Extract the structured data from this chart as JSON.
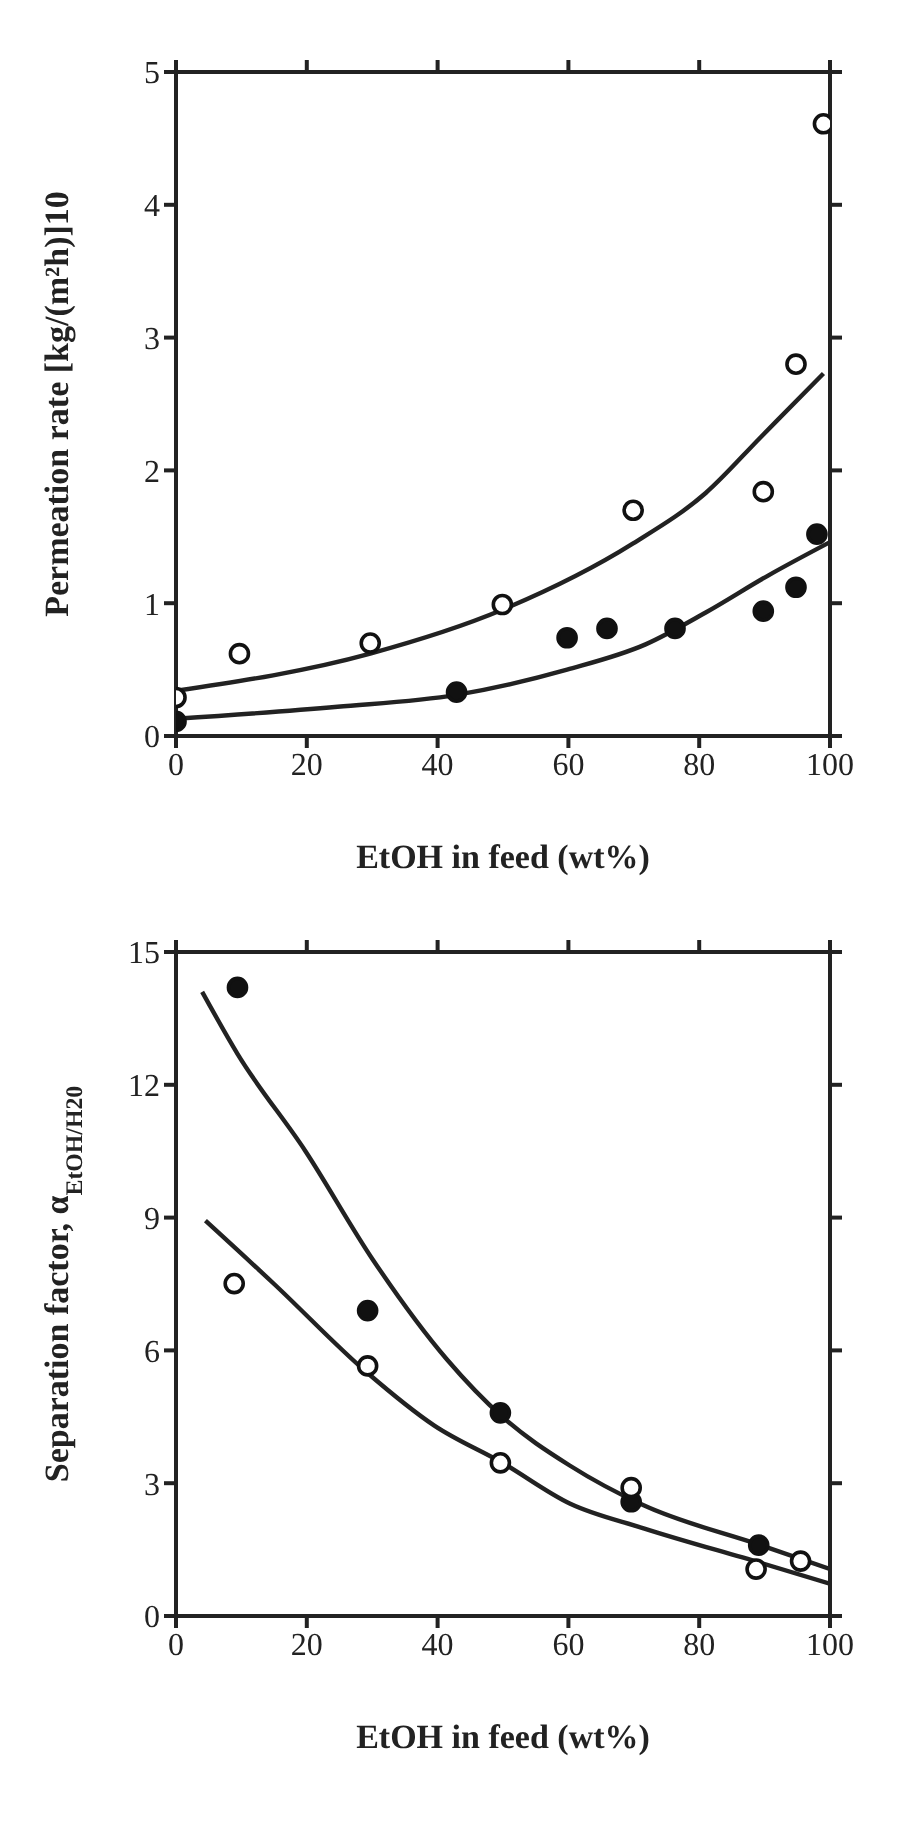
{
  "chart_data": [
    {
      "type": "scatter",
      "xlabel": "EtOH in feed (wt%)",
      "ylabel": "Permeation rate [kg/(m²h)]10",
      "xlim": [
        0,
        100
      ],
      "xticks": [
        0,
        20,
        40,
        60,
        80,
        100
      ],
      "ylim": [
        0,
        5
      ],
      "yticks": [
        0,
        1,
        2,
        3,
        4,
        5
      ],
      "series": [
        {
          "marker": "circle",
          "color": "#ffffff",
          "x": [
            0,
            9.7,
            29.7,
            49.9,
            69.9,
            89.8,
            94.8,
            99
          ],
          "values": [
            0.29,
            0.62,
            0.7,
            0.99,
            1.7,
            1.84,
            2.8,
            4.61
          ]
        },
        {
          "marker": "circle",
          "color": "#111111",
          "x": [
            0,
            42.9,
            59.8,
            65.9,
            76.3,
            89.8,
            94.8,
            98
          ],
          "values": [
            0.11,
            0.33,
            0.74,
            0.81,
            0.81,
            0.94,
            1.12,
            1.52
          ]
        },
        {
          "type": "line",
          "marker": "none",
          "color": "#222222",
          "x": [
            0,
            29.7,
            49.9,
            69.9,
            81,
            89.4,
            99
          ],
          "values": [
            0.34,
            0.62,
            0.95,
            1.45,
            1.83,
            2.25,
            2.73
          ]
        },
        {
          "type": "line",
          "marker": "none",
          "color": "#222222",
          "x": [
            0,
            24.7,
            42.9,
            59.8,
            71.8,
            81,
            90.6,
            100
          ],
          "values": [
            0.13,
            0.22,
            0.31,
            0.5,
            0.69,
            0.93,
            1.21,
            1.46
          ]
        }
      ]
    },
    {
      "type": "scatter",
      "xlabel": "EtOH in feed (wt%)",
      "ylabel": "Separation factor, α$_{EtOH/H20}$",
      "xlim": [
        0,
        100
      ],
      "xticks": [
        0,
        20,
        40,
        60,
        80,
        100
      ],
      "ylim": [
        0,
        15
      ],
      "yticks": [
        0,
        3,
        6,
        9,
        12,
        15
      ],
      "series": [
        {
          "marker": "circle",
          "color": "#111111",
          "x": [
            9.4,
            29.3,
            49.6,
            69.6,
            89.1
          ],
          "values": [
            14.2,
            6.9,
            4.59,
            2.58,
            1.6
          ]
        },
        {
          "marker": "circle",
          "color": "#ffffff",
          "x": [
            8.9,
            29.3,
            49.6,
            69.6,
            88.7,
            95.5
          ],
          "values": [
            7.51,
            5.65,
            3.46,
            2.9,
            1.06,
            1.24
          ]
        },
        {
          "type": "line",
          "marker": "none",
          "color": "#222222",
          "x": [
            4,
            9.4,
            19.8,
            30.1,
            41.4,
            49.9,
            60.2,
            71.5,
            89.4,
            100
          ],
          "values": [
            14.1,
            12.7,
            10.5,
            8.05,
            5.8,
            4.5,
            3.4,
            2.5,
            1.6,
            1.06
          ]
        },
        {
          "type": "line",
          "marker": "none",
          "color": "#222222",
          "x": [
            4.5,
            15,
            29.2,
            39.5,
            49.9,
            60.2,
            71.5,
            89.4,
            100
          ],
          "values": [
            8.93,
            7.5,
            5.5,
            4.3,
            3.46,
            2.54,
            1.98,
            1.2,
            0.73
          ]
        }
      ]
    }
  ]
}
